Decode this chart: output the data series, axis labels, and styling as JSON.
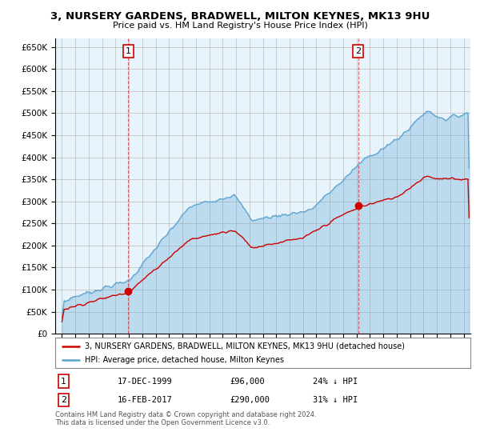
{
  "title": "3, NURSERY GARDENS, BRADWELL, MILTON KEYNES, MK13 9HU",
  "subtitle": "Price paid vs. HM Land Registry's House Price Index (HPI)",
  "legend_line1": "3, NURSERY GARDENS, BRADWELL, MILTON KEYNES, MK13 9HU (detached house)",
  "legend_line2": "HPI: Average price, detached house, Milton Keynes",
  "annotation1_label": "1",
  "annotation1_date": "17-DEC-1999",
  "annotation1_price": "£96,000",
  "annotation1_hpi": "24% ↓ HPI",
  "annotation2_label": "2",
  "annotation2_date": "16-FEB-2017",
  "annotation2_price": "£290,000",
  "annotation2_hpi": "31% ↓ HPI",
  "footnote": "Contains HM Land Registry data © Crown copyright and database right 2024.\nThis data is licensed under the Open Government Licence v3.0.",
  "sale1_year": 1999.96,
  "sale1_value": 96000,
  "sale2_year": 2017.12,
  "sale2_value": 290000,
  "hpi_color": "#5ba3d0",
  "hpi_fill": "#d6eaf8",
  "price_color": "#cc0000",
  "ylim_min": 0,
  "ylim_max": 670000,
  "xlim_min": 1994.5,
  "xlim_max": 2025.5,
  "bg_color": "#e8f4fc"
}
